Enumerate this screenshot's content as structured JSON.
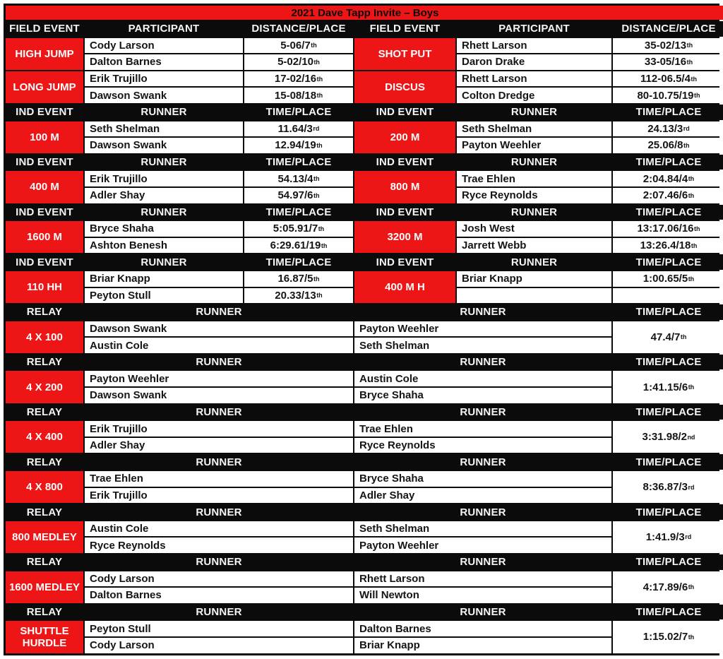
{
  "title": "2021 Dave Tapp Invite – Boys",
  "colors": {
    "red": "#ED1515",
    "black": "#0B0B0B",
    "cell_white": "#FFFFFF"
  },
  "sections": [
    {
      "kind": "dual-header",
      "labels": [
        "FIELD EVENT",
        "PARTICIPANT",
        "DISTANCE/PLACE",
        "FIELD EVENT",
        "PARTICIPANT",
        "DISTANCE/PLACE"
      ]
    },
    {
      "kind": "dual-group",
      "left": {
        "event": "HIGH JUMP",
        "rows": [
          {
            "name": "Cody Larson",
            "res": "5-06/7",
            "sup": "th"
          },
          {
            "name": "Dalton Barnes",
            "res": "5-02/10",
            "sup": "th"
          }
        ]
      },
      "right": {
        "event": "SHOT PUT",
        "rows": [
          {
            "name": "Rhett Larson",
            "res": "35-02/13",
            "sup": "th"
          },
          {
            "name": "Daron Drake",
            "res": "33-05/16",
            "sup": "th"
          }
        ]
      }
    },
    {
      "kind": "dual-group",
      "left": {
        "event": "LONG JUMP",
        "rows": [
          {
            "name": "Erik Trujillo",
            "res": "17-02/16",
            "sup": "th"
          },
          {
            "name": "Dawson Swank",
            "res": "15-08/18",
            "sup": "th"
          }
        ]
      },
      "right": {
        "event": "DISCUS",
        "rows": [
          {
            "name": "Rhett Larson",
            "res": "112-06.5/4",
            "sup": "th"
          },
          {
            "name": "Colton Dredge",
            "res": "80-10.75/19",
            "sup": "th"
          }
        ]
      }
    },
    {
      "kind": "dual-header",
      "labels": [
        "IND EVENT",
        "RUNNER",
        "TIME/PLACE",
        "IND EVENT",
        "RUNNER",
        "TIME/PLACE"
      ]
    },
    {
      "kind": "dual-group",
      "left": {
        "event": "100 M",
        "rows": [
          {
            "name": "Seth Shelman",
            "res": "11.64/3",
            "sup": "rd"
          },
          {
            "name": "Dawson Swank",
            "res": "12.94/19",
            "sup": "th"
          }
        ]
      },
      "right": {
        "event": "200 M",
        "rows": [
          {
            "name": "Seth Shelman",
            "res": "24.13/3",
            "sup": "rd"
          },
          {
            "name": "Payton Weehler",
            "res": "25.06/8",
            "sup": "th"
          }
        ]
      }
    },
    {
      "kind": "dual-header",
      "labels": [
        "IND EVENT",
        "RUNNER",
        "TIME/PLACE",
        "IND EVENT",
        "RUNNER",
        "TIME/PLACE"
      ]
    },
    {
      "kind": "dual-group",
      "left": {
        "event": "400 M",
        "rows": [
          {
            "name": "Erik Trujillo",
            "res": "54.13/4",
            "sup": "th"
          },
          {
            "name": "Adler Shay",
            "res": "54.97/6",
            "sup": "th"
          }
        ]
      },
      "right": {
        "event": "800 M",
        "rows": [
          {
            "name": "Trae Ehlen",
            "res": "2:04.84/4",
            "sup": "th"
          },
          {
            "name": "Ryce Reynolds",
            "res": "2:07.46/6",
            "sup": "th"
          }
        ]
      }
    },
    {
      "kind": "dual-header",
      "labels": [
        "IND EVENT",
        "RUNNER",
        "TIME/PLACE",
        "IND EVENT",
        "RUNNER",
        "TIME/PLACE"
      ]
    },
    {
      "kind": "dual-group",
      "left": {
        "event": "1600 M",
        "rows": [
          {
            "name": "Bryce Shaha",
            "res": "5:05.91/7",
            "sup": "th"
          },
          {
            "name": "Ashton Benesh",
            "res": "6:29.61/19",
            "sup": "th"
          }
        ]
      },
      "right": {
        "event": "3200 M",
        "rows": [
          {
            "name": "Josh West",
            "res": "13:17.06/16",
            "sup": "th"
          },
          {
            "name": "Jarrett Webb",
            "res": "13:26.4/18",
            "sup": "th"
          }
        ]
      }
    },
    {
      "kind": "dual-header",
      "labels": [
        "IND EVENT",
        "RUNNER",
        "TIME/PLACE",
        "IND EVENT",
        "RUNNER",
        "TIME/PLACE"
      ]
    },
    {
      "kind": "dual-group",
      "left": {
        "event": "110 HH",
        "rows": [
          {
            "name": "Briar Knapp",
            "res": "16.87/5",
            "sup": "th"
          },
          {
            "name": "Peyton Stull",
            "res": "20.33/13",
            "sup": "th"
          }
        ]
      },
      "right": {
        "event": "400 M H",
        "rows": [
          {
            "name": "Briar Knapp",
            "res": "1:00.65/5",
            "sup": "th"
          },
          {
            "name": "",
            "res": "",
            "sup": ""
          }
        ]
      }
    },
    {
      "kind": "relay-header",
      "labels": [
        "RELAY",
        "RUNNER",
        "RUNNER",
        "TIME/PLACE"
      ]
    },
    {
      "kind": "relay-group",
      "event": "4 X 100",
      "left_runners": [
        "Dawson Swank",
        "Austin Cole"
      ],
      "right_runners": [
        "Payton Weehler",
        "Seth Shelman"
      ],
      "res": "47.4/7",
      "sup": "th"
    },
    {
      "kind": "relay-header",
      "labels": [
        "RELAY",
        "RUNNER",
        "RUNNER",
        "TIME/PLACE"
      ]
    },
    {
      "kind": "relay-group",
      "event": "4 X 200",
      "left_runners": [
        "Payton Weehler",
        "Dawson Swank"
      ],
      "right_runners": [
        "Austin Cole",
        "Bryce Shaha"
      ],
      "res": "1:41.15/6",
      "sup": "th"
    },
    {
      "kind": "relay-header",
      "labels": [
        "RELAY",
        "RUNNER",
        "RUNNER",
        "TIME/PLACE"
      ]
    },
    {
      "kind": "relay-group",
      "event": "4 X 400",
      "left_runners": [
        "Erik Trujillo",
        "Adler Shay"
      ],
      "right_runners": [
        "Trae Ehlen",
        "Ryce Reynolds"
      ],
      "res": "3:31.98/2",
      "sup": "nd"
    },
    {
      "kind": "relay-header",
      "labels": [
        "RELAY",
        "RUNNER",
        "RUNNER",
        "TIME/PLACE"
      ]
    },
    {
      "kind": "relay-group",
      "event": "4 X 800",
      "left_runners": [
        "Trae Ehlen",
        "Erik Trujillo"
      ],
      "right_runners": [
        "Bryce Shaha",
        "Adler Shay"
      ],
      "res": "8:36.87/3",
      "sup": "rd"
    },
    {
      "kind": "relay-header",
      "labels": [
        "RELAY",
        "RUNNER",
        "RUNNER",
        "TIME/PLACE"
      ]
    },
    {
      "kind": "relay-group",
      "event": "800 MEDLEY",
      "left_runners": [
        "Austin Cole",
        "Ryce Reynolds"
      ],
      "right_runners": [
        "Seth Shelman",
        "Payton Weehler"
      ],
      "res": "1:41.9/3",
      "sup": "rd"
    },
    {
      "kind": "relay-header",
      "labels": [
        "RELAY",
        "RUNNER",
        "RUNNER",
        "TIME/PLACE"
      ]
    },
    {
      "kind": "relay-group",
      "event": "1600 MEDLEY",
      "left_runners": [
        "Cody Larson",
        "Dalton Barnes"
      ],
      "right_runners": [
        "Rhett Larson",
        "Will Newton"
      ],
      "res": "4:17.89/6",
      "sup": "th"
    },
    {
      "kind": "relay-header",
      "labels": [
        "RELAY",
        "RUNNER",
        "RUNNER",
        "TIME/PLACE"
      ]
    },
    {
      "kind": "relay-group",
      "event": "SHUTTLE HURDLE",
      "left_runners": [
        "Peyton Stull",
        "Cody Larson"
      ],
      "right_runners": [
        "Dalton Barnes",
        "Briar Knapp"
      ],
      "res": "1:15.02/7",
      "sup": "th"
    }
  ]
}
